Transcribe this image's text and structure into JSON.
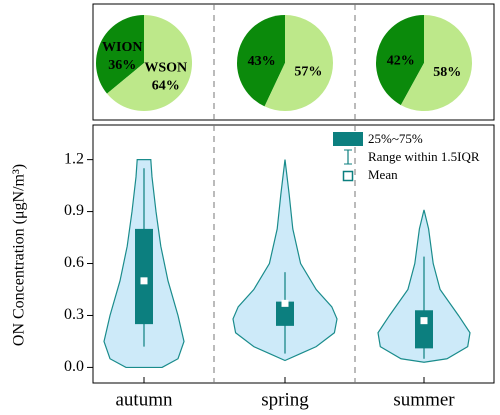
{
  "chart_data": [
    {
      "type": "pie",
      "categories": [
        "WION",
        "WSON"
      ],
      "values": [
        36,
        64
      ],
      "value_labels": [
        "36%",
        "64%"
      ],
      "colors": [
        "#0b8a0b",
        "#bde88a"
      ]
    },
    {
      "type": "pie",
      "values": [
        43,
        57
      ],
      "value_labels": [
        "43%",
        "57%"
      ],
      "colors": [
        "#0b8a0b",
        "#bde88a"
      ]
    },
    {
      "type": "pie",
      "values": [
        42,
        58
      ],
      "value_labels": [
        "42%",
        "58%"
      ],
      "colors": [
        "#0b8a0b",
        "#bde88a"
      ]
    },
    {
      "type": "violin",
      "ylabel": "ON Concentration (μgN/m³)",
      "categories": [
        "autumn",
        "spring",
        "summer"
      ],
      "ylim": [
        -0.09,
        1.4
      ],
      "yticks": [
        {
          "value": 0,
          "label": "0.0"
        },
        0.3,
        0.6,
        0.9,
        1.2
      ],
      "violin_color": "#cdeaf9",
      "violin_edge": "#1a8c8c",
      "box_color": "#0c7f7f",
      "legend": {
        "box": "25%~75%",
        "whisker": "Range within 1.5IQR",
        "mean": "Mean"
      },
      "violins": [
        {
          "y": [
            0.0,
            0.05,
            0.15,
            0.3,
            0.5,
            0.7,
            0.9,
            1.1,
            1.2
          ],
          "density": [
            0.45,
            0.85,
            1.0,
            0.85,
            0.6,
            0.42,
            0.3,
            0.2,
            0.17
          ]
        },
        {
          "y": [
            0.04,
            0.08,
            0.12,
            0.2,
            0.28,
            0.35,
            0.45,
            0.6,
            0.8,
            1.0,
            1.2
          ],
          "density": [
            0.0,
            0.3,
            0.6,
            0.95,
            1.0,
            0.9,
            0.6,
            0.3,
            0.15,
            0.08,
            0.0
          ]
        },
        {
          "y": [
            0.03,
            0.05,
            0.12,
            0.2,
            0.3,
            0.45,
            0.6,
            0.8,
            0.91
          ],
          "density": [
            0.0,
            0.5,
            0.95,
            1.0,
            0.75,
            0.35,
            0.2,
            0.1,
            0.0
          ]
        }
      ],
      "boxes": [
        {
          "q1": 0.25,
          "q3": 0.8,
          "low": 0.12,
          "high": 1.15,
          "mean": 0.5
        },
        {
          "q1": 0.24,
          "q3": 0.38,
          "low": 0.08,
          "high": 0.55,
          "mean": 0.37
        },
        {
          "q1": 0.11,
          "q3": 0.33,
          "low": 0.05,
          "high": 0.64,
          "mean": 0.27
        }
      ]
    }
  ]
}
